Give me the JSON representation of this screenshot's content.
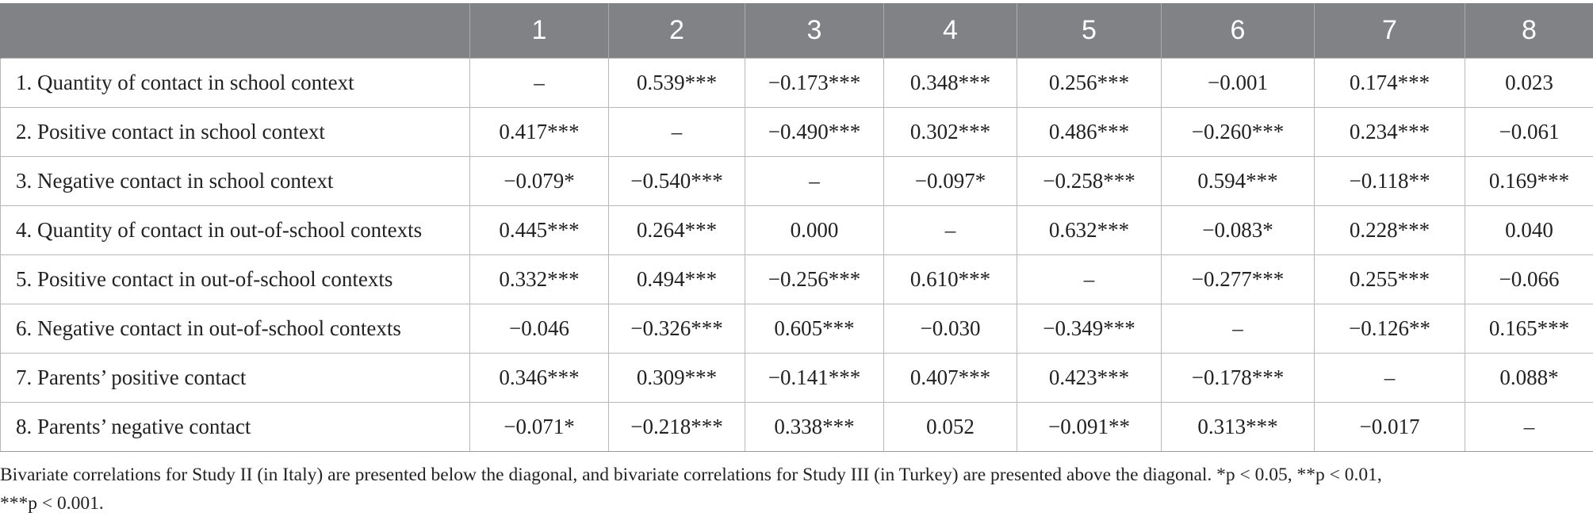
{
  "table": {
    "header": [
      "",
      "1",
      "2",
      "3",
      "4",
      "5",
      "6",
      "7",
      "8"
    ],
    "rows": [
      {
        "label": "1. Quantity of contact in school context",
        "cells": [
          "–",
          "0.539***",
          "−0.173***",
          "0.348***",
          "0.256***",
          "−0.001",
          "0.174***",
          "0.023"
        ]
      },
      {
        "label": "2. Positive contact in school context",
        "cells": [
          "0.417***",
          "–",
          "−0.490***",
          "0.302***",
          "0.486***",
          "−0.260***",
          "0.234***",
          "−0.061"
        ]
      },
      {
        "label": "3. Negative contact in school context",
        "cells": [
          "−0.079*",
          "−0.540***",
          "–",
          "−0.097*",
          "−0.258***",
          "0.594***",
          "−0.118**",
          "0.169***"
        ]
      },
      {
        "label": "4. Quantity of contact in out-of-school contexts",
        "cells": [
          "0.445***",
          "0.264***",
          "0.000",
          "–",
          "0.632***",
          "−0.083*",
          "0.228***",
          "0.040"
        ]
      },
      {
        "label": "5. Positive contact in out-of-school contexts",
        "cells": [
          "0.332***",
          "0.494***",
          "−0.256***",
          "0.610***",
          "–",
          "−0.277***",
          "0.255***",
          "−0.066"
        ]
      },
      {
        "label": "6. Negative contact in out-of-school contexts",
        "cells": [
          "−0.046",
          "−0.326***",
          "0.605***",
          "−0.030",
          "−0.349***",
          "–",
          "−0.126**",
          "0.165***"
        ]
      },
      {
        "label": "7. Parents’ positive contact",
        "cells": [
          "0.346***",
          "0.309***",
          "−0.141***",
          "0.407***",
          "0.423***",
          "−0.178***",
          "–",
          "0.088*"
        ]
      },
      {
        "label": "8. Parents’ negative contact",
        "cells": [
          "−0.071*",
          "−0.218***",
          "0.338***",
          "0.052",
          "−0.091**",
          "0.313***",
          "−0.017",
          "–"
        ]
      }
    ]
  },
  "footnote": {
    "line1": "Bivariate correlations for Study II (in Italy) are presented below the diagonal, and bivariate correlations for Study III (in Turkey) are presented above the diagonal. *p < 0.05, **p < 0.01,",
    "line2": "***p < 0.001."
  }
}
